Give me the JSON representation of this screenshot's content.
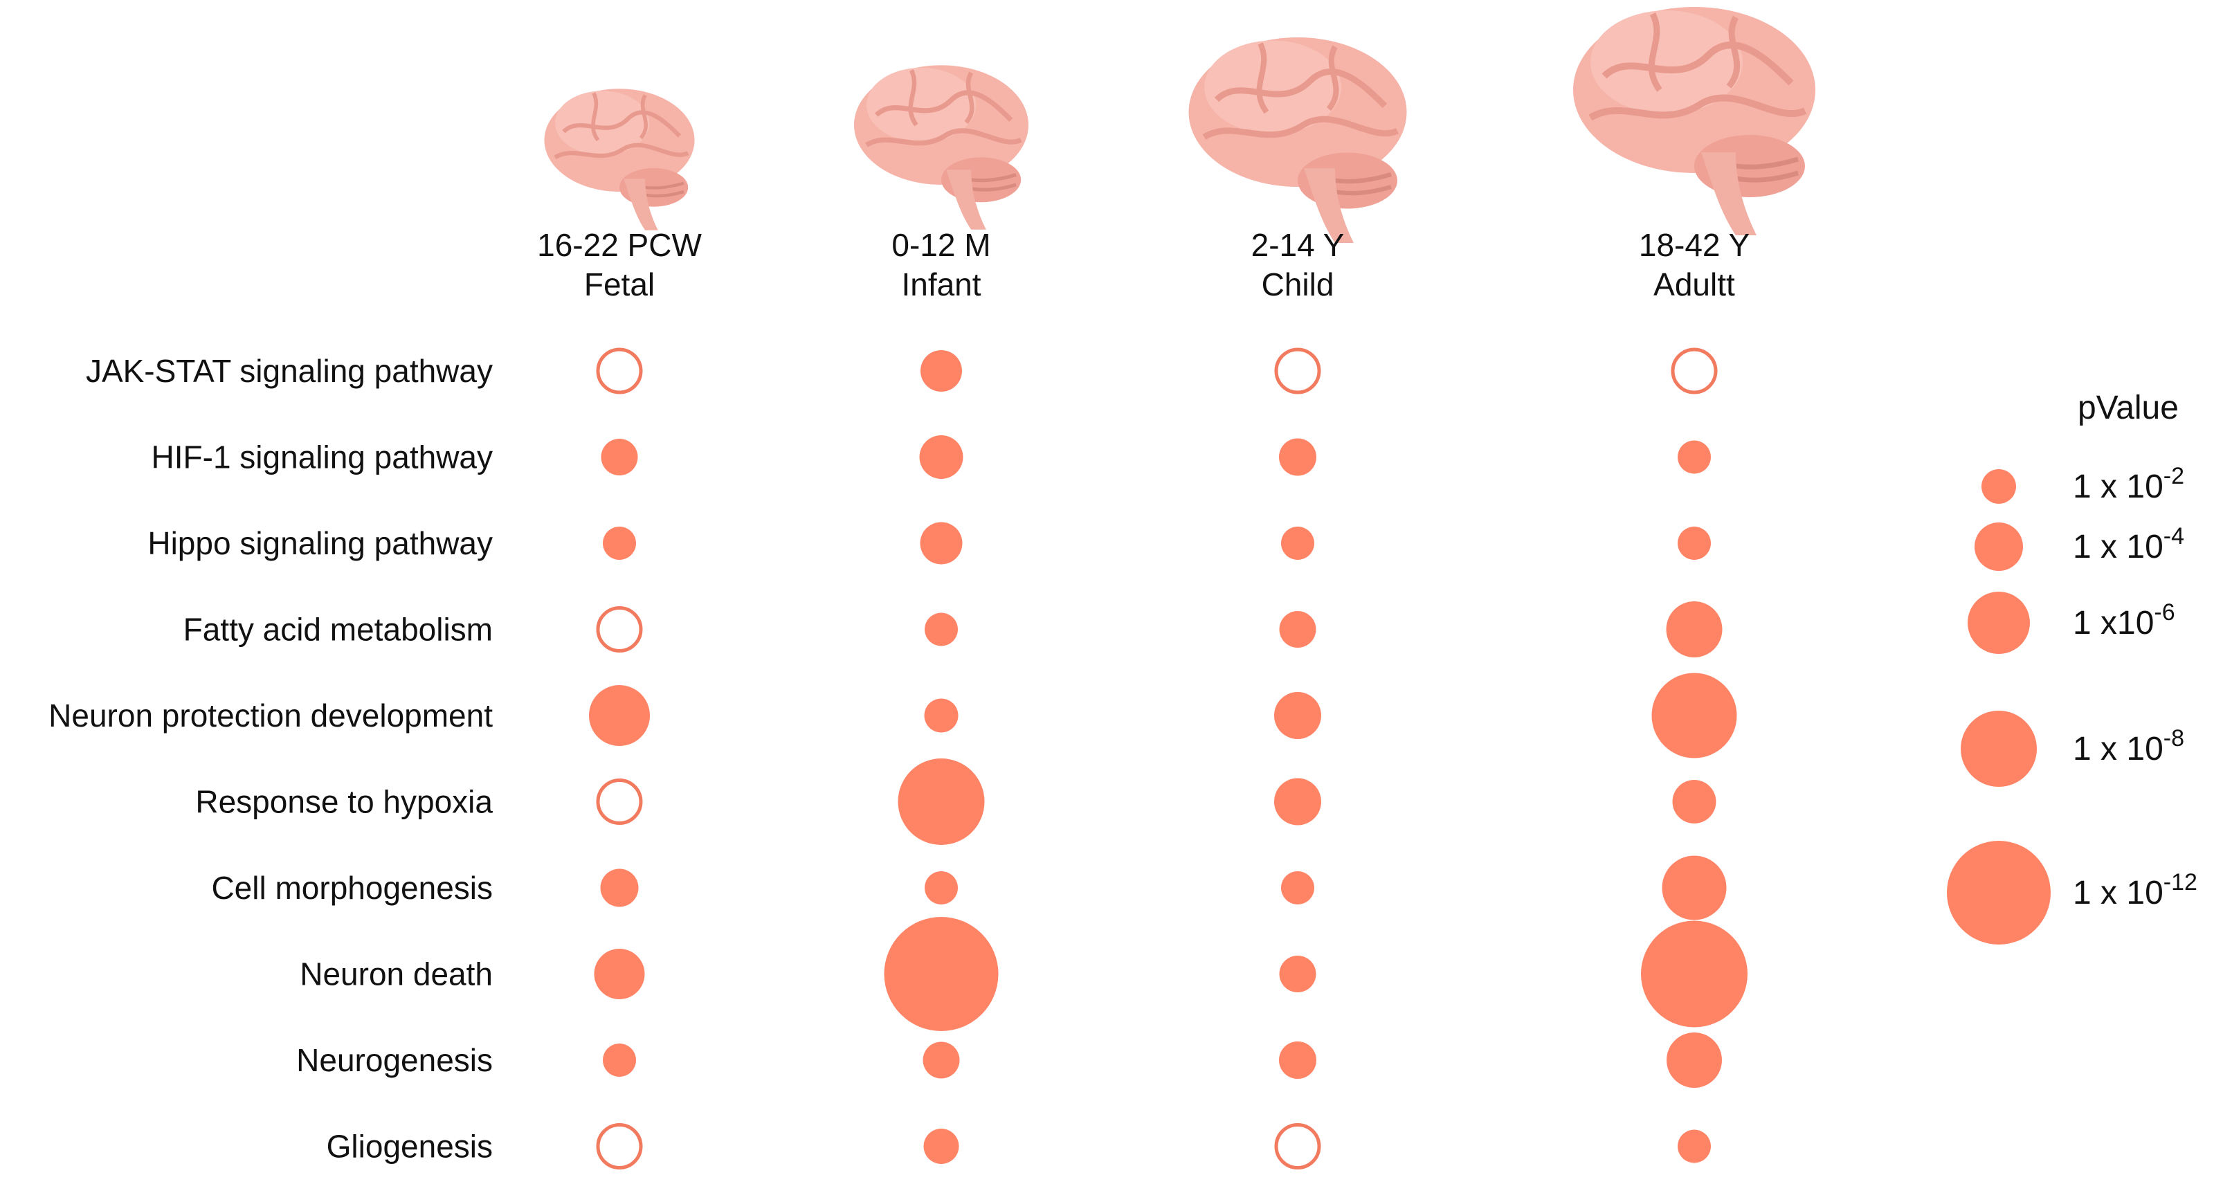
{
  "chart_data": {
    "type": "scatter",
    "title": "",
    "columns": [
      {
        "line1": "16-22 PCW",
        "line2": "Fetal",
        "brain_icon": "brain-fetal-icon",
        "icon_scale": 0.62
      },
      {
        "line1": "0-12 M",
        "line2": "Infant",
        "brain_icon": "brain-infant-icon",
        "icon_scale": 0.72
      },
      {
        "line1": "2-14 Y",
        "line2": "Child",
        "brain_icon": "brain-child-icon",
        "icon_scale": 0.9
      },
      {
        "line1": "18-42 Y",
        "line2": "Adultt",
        "brain_icon": "brain-adult-icon",
        "icon_scale": 1.0
      }
    ],
    "rows": [
      "JAK-STAT signaling pathway",
      "HIF-1 signaling pathway",
      "Hippo signaling pathway",
      "Fatty acid metabolism",
      "Neuron protection development",
      "Response to hypoxia",
      "Cell morphogenesis",
      "Neuron death",
      "Neurogenesis",
      "Gliogenesis"
    ],
    "neg_log10_pvalue": [
      [
        null,
        3.0,
        null,
        null
      ],
      [
        2.3,
        3.3,
        2.4,
        1.8
      ],
      [
        1.8,
        3.1,
        1.8,
        1.8
      ],
      [
        null,
        1.8,
        2.3,
        5.1
      ],
      [
        5.8,
        1.9,
        3.8,
        9.3
      ],
      [
        null,
        9.5,
        3.8,
        3.3
      ],
      [
        2.5,
        1.8,
        1.8,
        6.3
      ],
      [
        4.3,
        13.5,
        2.3,
        12.4
      ],
      [
        1.8,
        2.3,
        2.4,
        5.0
      ],
      [
        null,
        2.1,
        null,
        1.8
      ]
    ],
    "not_significant_marker": "open-circle",
    "legend": {
      "title": "pValue",
      "position": "right",
      "entries": [
        {
          "base": "1 x 10",
          "exp": "-2",
          "neg_log10_pvalue": 2
        },
        {
          "base": "1 x 10",
          "exp": "-4",
          "neg_log10_pvalue": 4
        },
        {
          "base": "1 x10",
          "exp": "-6",
          "neg_log10_pvalue": 6
        },
        {
          "base": "1 x 10",
          "exp": "-8",
          "neg_log10_pvalue": 8
        },
        {
          "base": "1 x 10",
          "exp": "-12",
          "neg_log10_pvalue": 12
        }
      ]
    },
    "colors": {
      "dot": "#FF8466",
      "open_stroke": "#F27A5E",
      "brain_fill": "#F6B3A8",
      "brain_shade": "#E99A8E"
    },
    "grid": false
  }
}
